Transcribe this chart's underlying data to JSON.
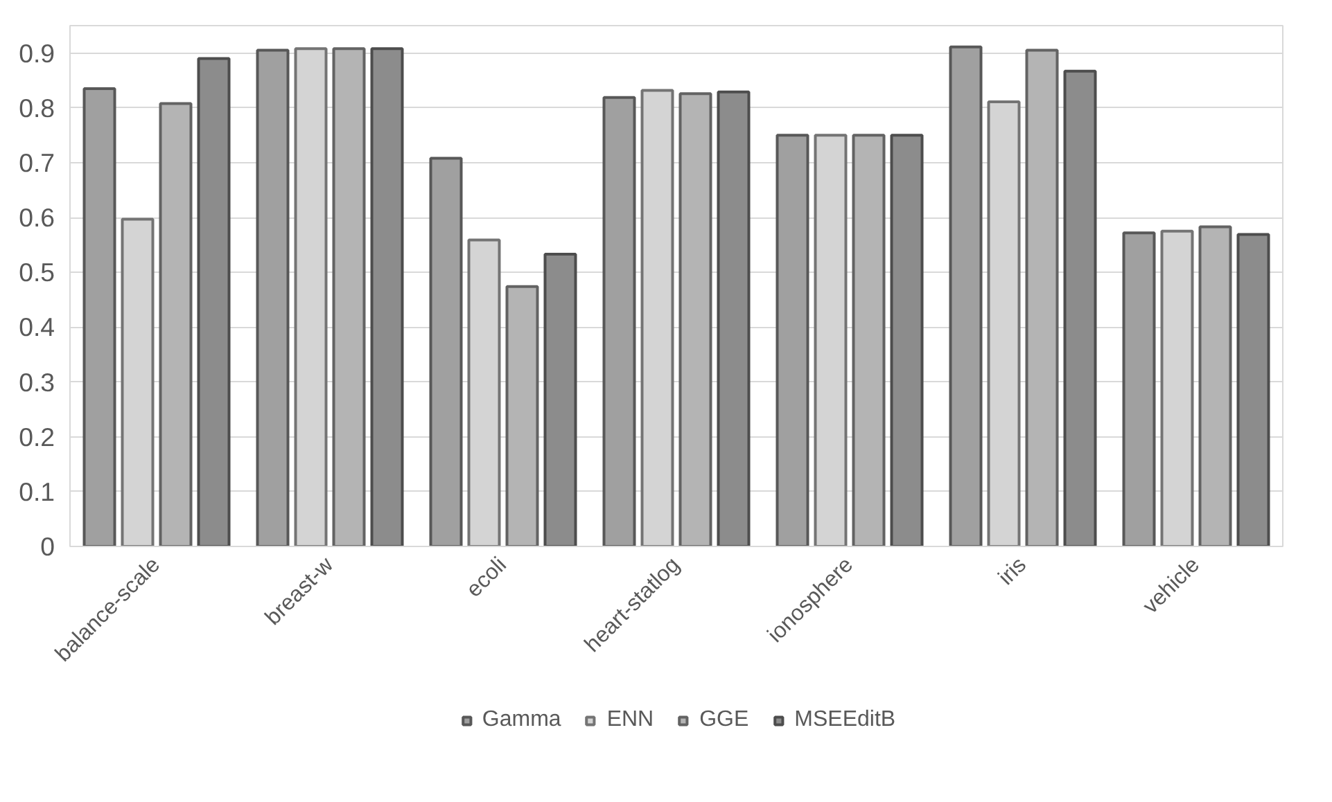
{
  "chart_data": {
    "type": "bar",
    "categories": [
      "balance-scale",
      "breast-w",
      "ecoli",
      "heart-statlog",
      "ionosphere",
      "iris",
      "vehicle"
    ],
    "series": [
      {
        "name": "Gamma",
        "color": "#a0a0a0",
        "values": [
          0.835,
          0.905,
          0.708,
          0.819,
          0.75,
          0.911,
          0.572
        ]
      },
      {
        "name": "ENN",
        "color": "#d4d4d4",
        "values": [
          0.597,
          0.908,
          0.559,
          0.832,
          0.75,
          0.811,
          0.575
        ]
      },
      {
        "name": "GGE",
        "color": "#b4b4b4",
        "values": [
          0.808,
          0.908,
          0.474,
          0.826,
          0.75,
          0.905,
          0.583
        ]
      },
      {
        "name": "MSEEditB",
        "color": "#8c8c8c",
        "values": [
          0.89,
          0.908,
          0.533,
          0.829,
          0.75,
          0.867,
          0.569
        ]
      }
    ],
    "ylim": [
      0,
      0.95
    ],
    "yticks": [
      0,
      0.1,
      0.2,
      0.3,
      0.4,
      0.5,
      0.6,
      0.7,
      0.8,
      0.9
    ],
    "grid": "y",
    "legend": "bottom"
  }
}
